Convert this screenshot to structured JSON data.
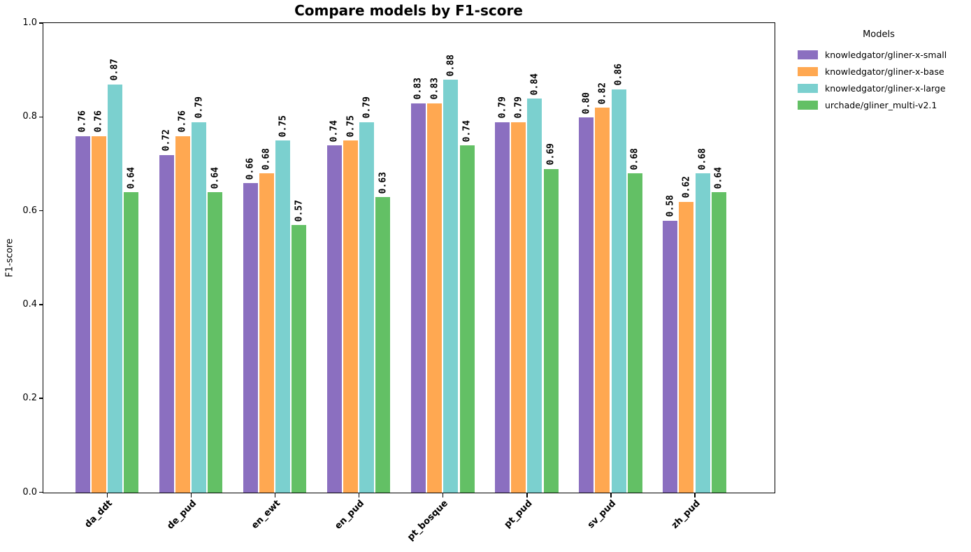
{
  "colors": {
    "background": "#ffffff",
    "axis": "#000000",
    "text": "#000000"
  },
  "chart_data": {
    "type": "bar",
    "title": "Compare models by F1-score",
    "ylabel": "F1-score",
    "xlabel": "",
    "ylim": [
      0.0,
      1.0
    ],
    "ytick_labels": [
      "0.0",
      "0.2",
      "0.4",
      "0.6",
      "0.8",
      "1.0"
    ],
    "categories": [
      "da_ddt",
      "de_pud",
      "en_ewt",
      "en_pud",
      "pt_bosque",
      "pt_pud",
      "sv_pud",
      "zh_pud"
    ],
    "grid": false,
    "bar_value_labels_shown": true,
    "value_label_rotation_deg": 90,
    "xtick_label_rotation_deg": 45,
    "legend": {
      "title": "Models",
      "position": "upper-right-outside"
    },
    "series": [
      {
        "name": "knowledgator/gliner-x-small",
        "color": "#8b6fc0",
        "values": [
          0.76,
          0.72,
          0.66,
          0.74,
          0.83,
          0.79,
          0.8,
          0.58
        ]
      },
      {
        "name": "knowledgator/gliner-x-base",
        "color": "#ffa851",
        "values": [
          0.76,
          0.76,
          0.68,
          0.75,
          0.83,
          0.79,
          0.82,
          0.62
        ]
      },
      {
        "name": "knowledgator/gliner-x-large",
        "color": "#7bd0cf",
        "values": [
          0.87,
          0.79,
          0.75,
          0.79,
          0.88,
          0.84,
          0.86,
          0.68
        ]
      },
      {
        "name": "urchade/gliner_multi-v2.1",
        "color": "#63c065",
        "values": [
          0.64,
          0.64,
          0.57,
          0.63,
          0.74,
          0.69,
          0.68,
          0.64
        ]
      }
    ]
  }
}
